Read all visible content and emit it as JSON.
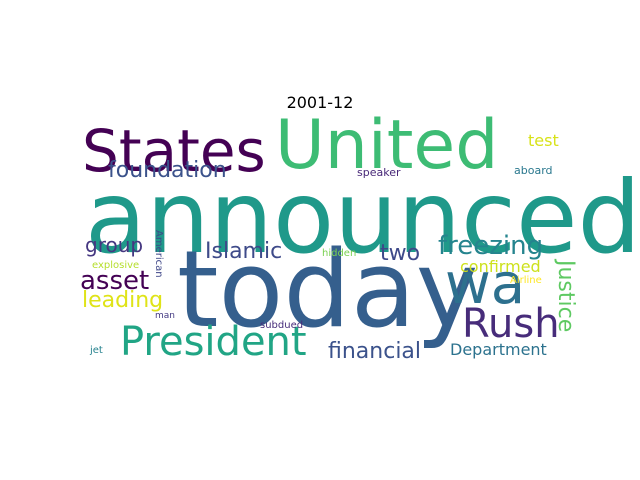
{
  "figure": {
    "title": "2001-12"
  },
  "words": [
    {
      "text": "United",
      "color": "#3dbc74",
      "vertical": false
    },
    {
      "text": "States",
      "color": "#440154",
      "vertical": false
    },
    {
      "text": "announced",
      "color": "#1f998a",
      "vertical": false
    },
    {
      "text": "today",
      "color": "#355f8d",
      "vertical": false
    },
    {
      "text": "wa",
      "color": "#2d708e",
      "vertical": false
    },
    {
      "text": "President",
      "color": "#21a585",
      "vertical": false
    },
    {
      "text": "Rush",
      "color": "#472c7a",
      "vertical": false
    },
    {
      "text": "freezing",
      "color": "#25848e",
      "vertical": false
    },
    {
      "text": "foundation",
      "color": "#3b528b",
      "vertical": false
    },
    {
      "text": "Islamic",
      "color": "#3e4a89",
      "vertical": false
    },
    {
      "text": "two",
      "color": "#3e4989",
      "vertical": false
    },
    {
      "text": "asset",
      "color": "#440154",
      "vertical": false
    },
    {
      "text": "group",
      "color": "#453781",
      "vertical": false
    },
    {
      "text": "leading",
      "color": "#dfe318",
      "vertical": false
    },
    {
      "text": "financial",
      "color": "#3b528b",
      "vertical": false
    },
    {
      "text": "Department",
      "color": "#2c728e",
      "vertical": false
    },
    {
      "text": "Justice",
      "color": "#5ec962",
      "vertical": true
    },
    {
      "text": "test",
      "color": "#d8e219",
      "vertical": false
    },
    {
      "text": "confirmed",
      "color": "#cde11d",
      "vertical": false
    },
    {
      "text": "speaker",
      "color": "#482878",
      "vertical": false
    },
    {
      "text": "aboard",
      "color": "#2a788e",
      "vertical": false
    },
    {
      "text": "American",
      "color": "#3f4788",
      "vertical": true
    },
    {
      "text": "hidden",
      "color": "#7ad151",
      "vertical": false
    },
    {
      "text": "explosive",
      "color": "#b5de2b",
      "vertical": false
    },
    {
      "text": "Airline",
      "color": "#fde725",
      "vertical": false
    },
    {
      "text": "man",
      "color": "#443a83",
      "vertical": false
    },
    {
      "text": "subdued",
      "color": "#472d7b",
      "vertical": false
    },
    {
      "text": "jet",
      "color": "#26828e",
      "vertical": false
    }
  ]
}
